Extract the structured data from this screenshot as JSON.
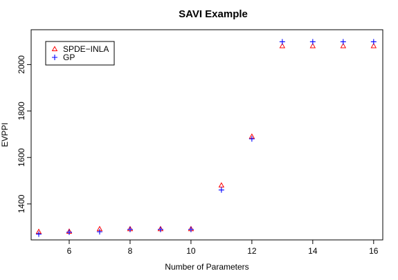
{
  "chart_data": {
    "type": "scatter",
    "title": "SAVI Example",
    "xlabel": "Number of Parameters",
    "ylabel": "EVPPI",
    "xlim": [
      4.75,
      16.3
    ],
    "ylim": [
      1245,
      2150
    ],
    "xticks": [
      6,
      8,
      10,
      12,
      14,
      16
    ],
    "yticks": [
      1400,
      1600,
      1800,
      2000
    ],
    "grid": false,
    "legend_position": "top-left",
    "series": [
      {
        "name": "SPDE−INLA",
        "marker": "triangle-open",
        "color": "#ff0000",
        "x": [
          5,
          6,
          7,
          8,
          9,
          10,
          11,
          12,
          13,
          14,
          15,
          16
        ],
        "y": [
          1280,
          1281,
          1292,
          1292,
          1292,
          1292,
          1480,
          1690,
          2080,
          2080,
          2080,
          2080
        ]
      },
      {
        "name": "GP",
        "marker": "plus",
        "color": "#0000ff",
        "x": [
          5,
          6,
          7,
          8,
          9,
          10,
          11,
          12,
          13,
          14,
          15,
          16
        ],
        "y": [
          1270,
          1278,
          1280,
          1290,
          1290,
          1290,
          1460,
          1680,
          2098,
          2098,
          2098,
          2098
        ]
      }
    ]
  }
}
